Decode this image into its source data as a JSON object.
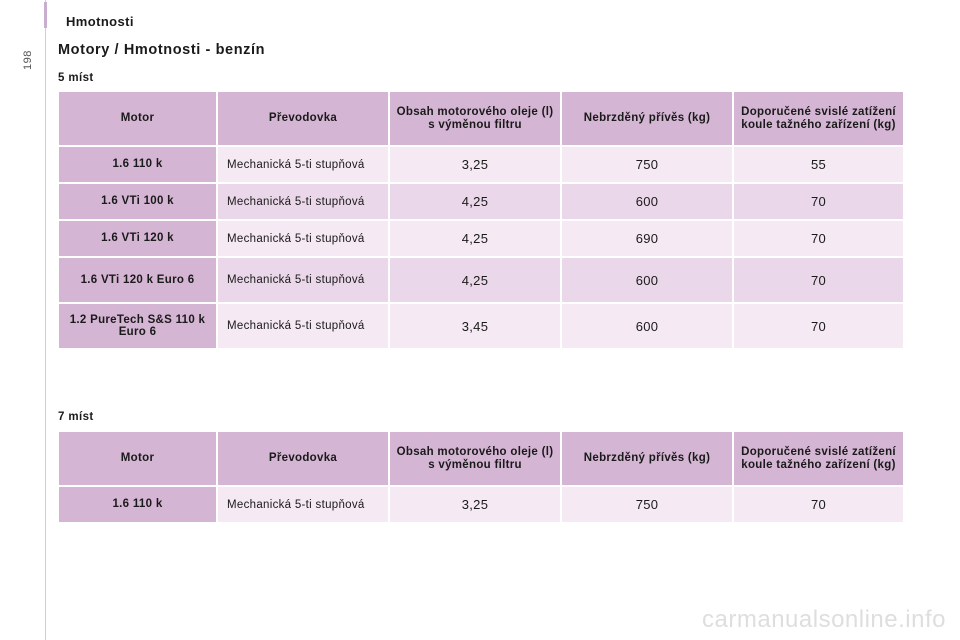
{
  "page": {
    "number": "198",
    "section": "Hmotnosti",
    "title": "Motory / Hmotnosti - benzín"
  },
  "columns": [
    "Motor",
    "Převodovka",
    "Obsah motorového oleje (l) s výměnou filtru",
    "Nebrzděný přívěs (kg)",
    "Doporučené svislé zatížení koule tažného zařízení (kg)"
  ],
  "tables": [
    {
      "label": "5 míst",
      "rows": [
        {
          "motor": "1.6 110 k",
          "gearbox": "Mechanická 5-ti stupňová",
          "oil": "3,25",
          "trailer": "750",
          "load": "55"
        },
        {
          "motor": "1.6 VTi 100 k",
          "gearbox": "Mechanická 5-ti stupňová",
          "oil": "4,25",
          "trailer": "600",
          "load": "70"
        },
        {
          "motor": "1.6 VTi 120 k",
          "gearbox": "Mechanická 5-ti stupňová",
          "oil": "4,25",
          "trailer": "690",
          "load": "70"
        },
        {
          "motor": "1.6 VTi 120 k Euro 6",
          "gearbox": "Mechanická 5-ti stupňová",
          "oil": "4,25",
          "trailer": "600",
          "load": "70"
        },
        {
          "motor": "1.2 PureTech S&S 110 k Euro 6",
          "gearbox": "Mechanická 5-ti stupňová",
          "oil": "3,45",
          "trailer": "600",
          "load": "70"
        }
      ]
    },
    {
      "label": "7 míst",
      "rows": [
        {
          "motor": "1.6 110 k",
          "gearbox": "Mechanická 5-ti stupňová",
          "oil": "3,25",
          "trailer": "750",
          "load": "70"
        }
      ]
    }
  ],
  "watermark": "carmanualsonline.info",
  "colors": {
    "header": "#d5b5d4",
    "row_light": "#f5e9f3",
    "row_dark": "#ead7e9"
  }
}
